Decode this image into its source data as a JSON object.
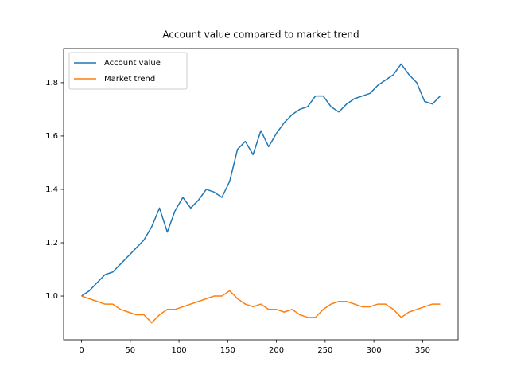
{
  "chart_data": {
    "type": "line",
    "title": "Account value compared to market trend",
    "x": [
      0,
      8,
      16,
      24,
      32,
      40,
      48,
      56,
      64,
      72,
      80,
      88,
      96,
      104,
      112,
      120,
      128,
      136,
      144,
      152,
      160,
      168,
      176,
      184,
      192,
      200,
      208,
      216,
      224,
      232,
      240,
      248,
      256,
      264,
      272,
      280,
      288,
      296,
      304,
      312,
      320,
      328,
      336,
      344,
      352,
      360,
      368
    ],
    "series": [
      {
        "name": "Account value",
        "color": "#1f77b4",
        "values": [
          1.0,
          1.02,
          1.05,
          1.08,
          1.09,
          1.12,
          1.15,
          1.18,
          1.21,
          1.26,
          1.33,
          1.24,
          1.32,
          1.37,
          1.33,
          1.36,
          1.4,
          1.39,
          1.37,
          1.43,
          1.55,
          1.58,
          1.53,
          1.62,
          1.56,
          1.61,
          1.65,
          1.68,
          1.7,
          1.71,
          1.75,
          1.75,
          1.71,
          1.69,
          1.72,
          1.74,
          1.75,
          1.76,
          1.79,
          1.81,
          1.83,
          1.87,
          1.83,
          1.8,
          1.73,
          1.72,
          1.75
        ]
      },
      {
        "name": "Market trend",
        "color": "#ff7f0e",
        "values": [
          1.0,
          0.99,
          0.98,
          0.97,
          0.97,
          0.95,
          0.94,
          0.93,
          0.93,
          0.9,
          0.93,
          0.95,
          0.95,
          0.96,
          0.97,
          0.98,
          0.99,
          1.0,
          1.0,
          1.02,
          0.99,
          0.97,
          0.96,
          0.97,
          0.95,
          0.95,
          0.94,
          0.95,
          0.93,
          0.92,
          0.92,
          0.95,
          0.97,
          0.98,
          0.98,
          0.97,
          0.96,
          0.96,
          0.97,
          0.97,
          0.95,
          0.92,
          0.94,
          0.95,
          0.96,
          0.97,
          0.97
        ]
      }
    ],
    "xlim": [
      -18.4,
      386.4
    ],
    "ylim": [
      0.836,
      1.928
    ],
    "xticks": [
      0,
      50,
      100,
      150,
      200,
      250,
      300,
      350
    ],
    "yticks": [
      {
        "value": 1,
        "label": "1.0"
      },
      1.2,
      1.4,
      1.6,
      1.8
    ],
    "legend": "upper left"
  }
}
